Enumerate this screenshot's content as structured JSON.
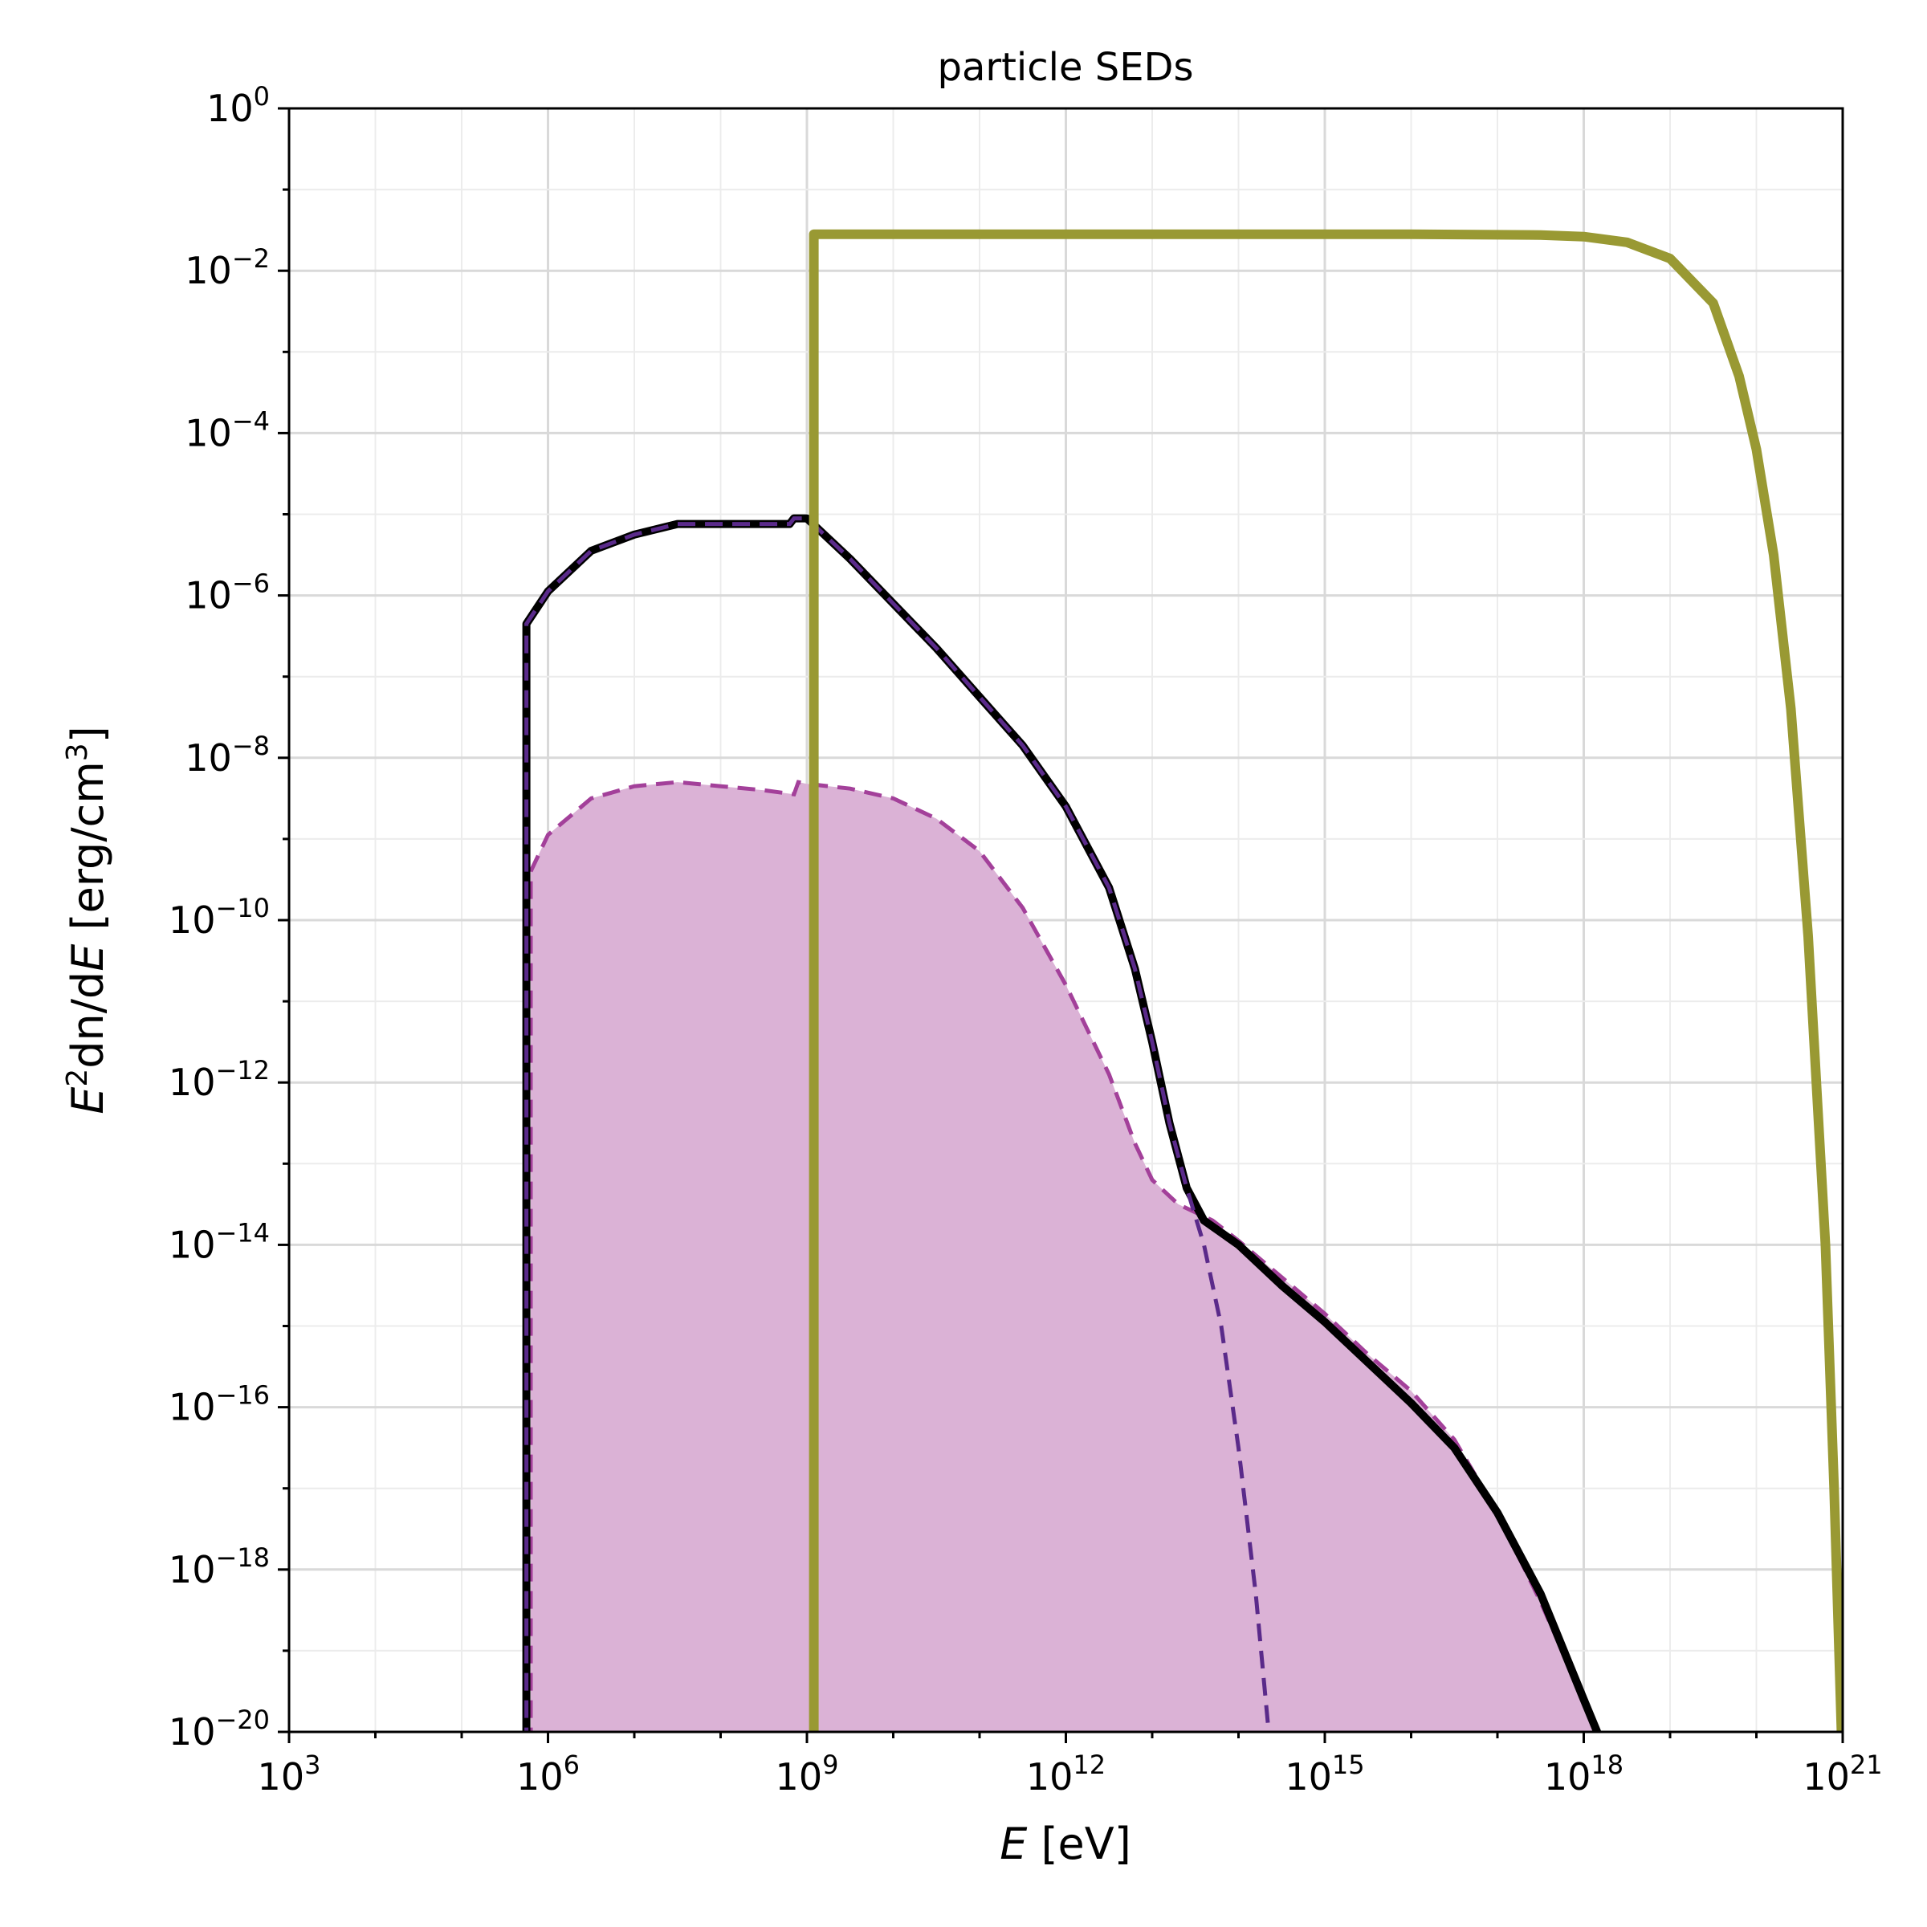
{
  "chart_data": {
    "type": "line",
    "title": "particle SEDs",
    "xlabel_italic": "E",
    "xlabel_rest": " [eV]",
    "ylabel_parts": [
      "E",
      "2",
      "dn/d",
      "E",
      " [erg/cm",
      "3",
      "]"
    ],
    "x_scale": "log",
    "y_scale": "log",
    "xlim": [
      1000.0,
      1e+21
    ],
    "ylim": [
      1e-20,
      1
    ],
    "grid": true,
    "x_ticks": [
      {
        "base": "10",
        "exp": "3",
        "value": 3
      },
      {
        "base": "10",
        "exp": "6",
        "value": 6
      },
      {
        "base": "10",
        "exp": "9",
        "value": 9
      },
      {
        "base": "10",
        "exp": "12",
        "value": 12
      },
      {
        "base": "10",
        "exp": "15",
        "value": 15
      },
      {
        "base": "10",
        "exp": "18",
        "value": 18
      },
      {
        "base": "10",
        "exp": "21",
        "value": 21
      }
    ],
    "y_ticks": [
      {
        "base": "10",
        "exp": "0",
        "value": 0
      },
      {
        "base": "10",
        "exp": "−2",
        "value": -2
      },
      {
        "base": "10",
        "exp": "−4",
        "value": -4
      },
      {
        "base": "10",
        "exp": "−6",
        "value": -6
      },
      {
        "base": "10",
        "exp": "−8",
        "value": -8
      },
      {
        "base": "10",
        "exp": "−10",
        "value": -10
      },
      {
        "base": "10",
        "exp": "−12",
        "value": -12
      },
      {
        "base": "10",
        "exp": "−14",
        "value": -14
      },
      {
        "base": "10",
        "exp": "−16",
        "value": -16
      },
      {
        "base": "10",
        "exp": "−18",
        "value": -18
      },
      {
        "base": "10",
        "exp": "−20",
        "value": -20
      }
    ],
    "series": [
      {
        "style": "shaded-dashed",
        "color": "#a3409a",
        "fill": "#dbb2d6",
        "log10_points": [
          [
            5.8,
            -20.5
          ],
          [
            5.8,
            -9.4
          ],
          [
            6,
            -8.95
          ],
          [
            6.5,
            -8.5
          ],
          [
            7,
            -8.35
          ],
          [
            7.5,
            -8.3
          ],
          [
            8,
            -8.35
          ],
          [
            8.5,
            -8.4
          ],
          [
            8.85,
            -8.45
          ],
          [
            8.9,
            -8.3
          ],
          [
            9,
            -8.32
          ],
          [
            9.5,
            -8.38
          ],
          [
            10,
            -8.5
          ],
          [
            10.5,
            -8.75
          ],
          [
            11,
            -9.15
          ],
          [
            11.5,
            -9.85
          ],
          [
            12,
            -10.8
          ],
          [
            12.5,
            -11.9
          ],
          [
            12.8,
            -12.75
          ],
          [
            13,
            -13.2
          ],
          [
            13.3,
            -13.5
          ],
          [
            13.7,
            -13.7
          ],
          [
            14,
            -13.95
          ],
          [
            14.5,
            -14.4
          ],
          [
            15,
            -14.85
          ],
          [
            15.5,
            -15.35
          ],
          [
            16,
            -15.8
          ],
          [
            16.5,
            -16.4
          ],
          [
            17,
            -17.3
          ],
          [
            17.5,
            -18.4
          ],
          [
            18,
            -19.6
          ],
          [
            18.3,
            -20.5
          ]
        ]
      },
      {
        "style": "solid-black",
        "color": "#000000",
        "log10_points": [
          [
            5.75,
            -20.5
          ],
          [
            5.75,
            -6.35
          ],
          [
            6,
            -5.95
          ],
          [
            6.5,
            -5.45
          ],
          [
            7,
            -5.25
          ],
          [
            7.5,
            -5.12
          ],
          [
            8,
            -5.12
          ],
          [
            8.5,
            -5.12
          ],
          [
            8.8,
            -5.12
          ],
          [
            8.85,
            -5.05
          ],
          [
            9,
            -5.05
          ],
          [
            9.5,
            -5.55
          ],
          [
            10,
            -6.1
          ],
          [
            10.5,
            -6.65
          ],
          [
            11,
            -7.25
          ],
          [
            11.5,
            -7.85
          ],
          [
            12,
            -8.6
          ],
          [
            12.5,
            -9.6
          ],
          [
            12.8,
            -10.6
          ],
          [
            13,
            -11.5
          ],
          [
            13.2,
            -12.5
          ],
          [
            13.4,
            -13.3
          ],
          [
            13.6,
            -13.7
          ],
          [
            14,
            -14
          ],
          [
            14.5,
            -14.5
          ],
          [
            15,
            -14.95
          ],
          [
            15.5,
            -15.45
          ],
          [
            16,
            -15.95
          ],
          [
            16.5,
            -16.5
          ],
          [
            17,
            -17.3
          ],
          [
            17.5,
            -18.3
          ],
          [
            18,
            -19.6
          ],
          [
            18.35,
            -20.5
          ]
        ]
      },
      {
        "style": "dashed-purple",
        "color": "#5a2a8a",
        "log10_points": [
          [
            5.75,
            -20.5
          ],
          [
            5.75,
            -6.35
          ],
          [
            6,
            -5.95
          ],
          [
            6.5,
            -5.45
          ],
          [
            7,
            -5.25
          ],
          [
            7.5,
            -5.12
          ],
          [
            8,
            -5.12
          ],
          [
            8.5,
            -5.12
          ],
          [
            8.8,
            -5.12
          ],
          [
            8.85,
            -5.05
          ],
          [
            9,
            -5.05
          ],
          [
            9.5,
            -5.55
          ],
          [
            10,
            -6.1
          ],
          [
            10.5,
            -6.65
          ],
          [
            11,
            -7.25
          ],
          [
            11.5,
            -7.85
          ],
          [
            12,
            -8.6
          ],
          [
            12.5,
            -9.6
          ],
          [
            12.8,
            -10.6
          ],
          [
            13,
            -11.5
          ],
          [
            13.2,
            -12.5
          ],
          [
            13.4,
            -13.3
          ],
          [
            13.6,
            -14
          ],
          [
            13.8,
            -15
          ],
          [
            14,
            -16.5
          ],
          [
            14.2,
            -18.3
          ],
          [
            14.35,
            -20
          ]
        ]
      },
      {
        "style": "solid-olive",
        "color": "#999933",
        "log10_points": [
          [
            9.08,
            -20.5
          ],
          [
            9.08,
            -1.55
          ],
          [
            10,
            -1.55
          ],
          [
            12,
            -1.55
          ],
          [
            14,
            -1.55
          ],
          [
            16,
            -1.55
          ],
          [
            17.5,
            -1.56
          ],
          [
            18,
            -1.58
          ],
          [
            18.5,
            -1.65
          ],
          [
            19,
            -1.85
          ],
          [
            19.5,
            -2.4
          ],
          [
            19.8,
            -3.3
          ],
          [
            20,
            -4.2
          ],
          [
            20.2,
            -5.5
          ],
          [
            20.4,
            -7.4
          ],
          [
            20.6,
            -10.2
          ],
          [
            20.8,
            -14
          ],
          [
            20.9,
            -17
          ],
          [
            21,
            -20.5
          ]
        ]
      }
    ]
  }
}
